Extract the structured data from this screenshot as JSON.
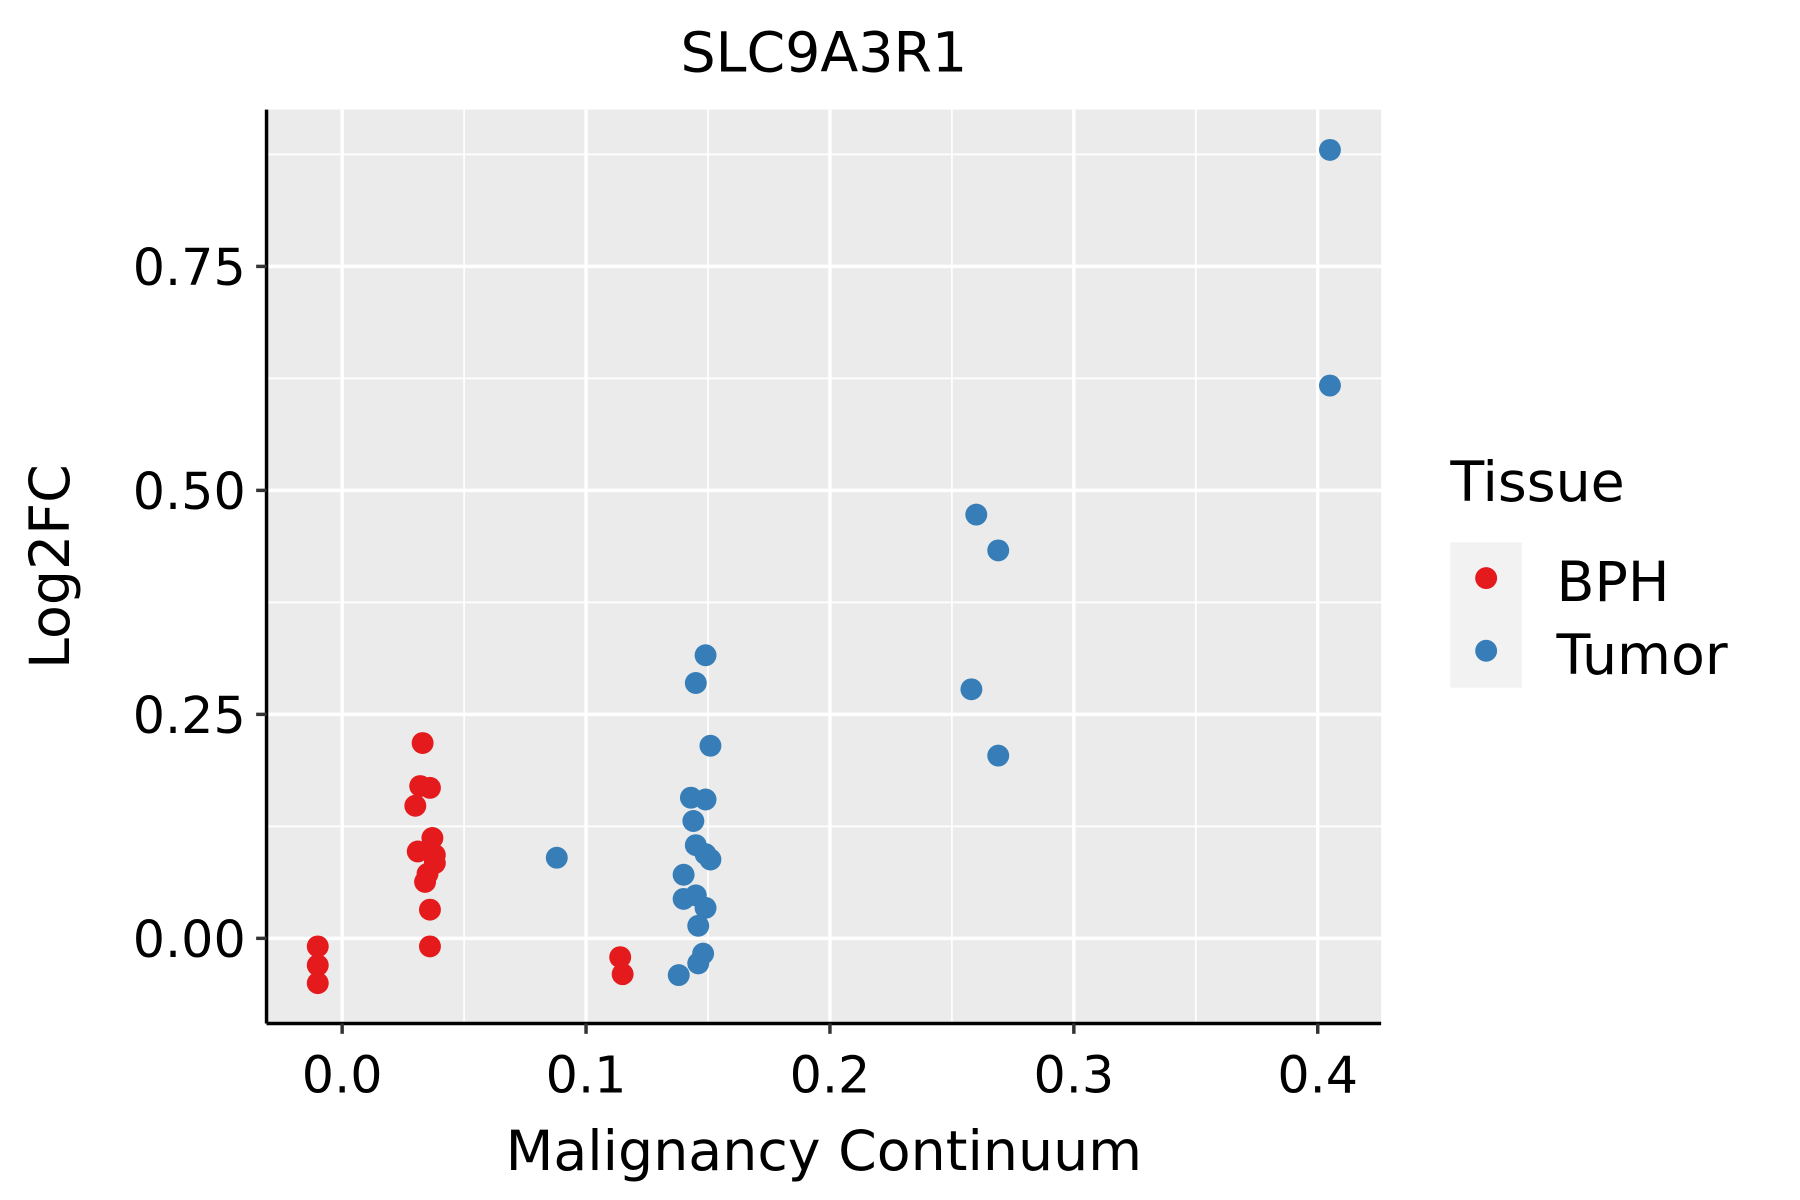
{
  "chart_data": {
    "type": "scatter",
    "title": "SLC9A3R1",
    "xlabel": "Malignancy Continuum",
    "ylabel": "Log2FC",
    "xlim": [
      -0.031,
      0.426
    ],
    "ylim": [
      -0.095,
      0.925
    ],
    "xticks": [
      0.0,
      0.1,
      0.2,
      0.3,
      0.4
    ],
    "xtick_labels": [
      "0.0",
      "0.1",
      "0.2",
      "0.3",
      "0.4"
    ],
    "yticks": [
      0.0,
      0.25,
      0.5,
      0.75
    ],
    "ytick_labels": [
      "0.00",
      "0.25",
      "0.50",
      "0.75"
    ],
    "grid": true,
    "legend": {
      "title": "Tissue",
      "placement": "right"
    },
    "series": [
      {
        "name": "BPH",
        "color": "#E41A1C",
        "points": [
          [
            -0.01,
            -0.009
          ],
          [
            -0.01,
            -0.03
          ],
          [
            -0.01,
            -0.05
          ],
          [
            0.033,
            0.218
          ],
          [
            0.032,
            0.17
          ],
          [
            0.036,
            0.168
          ],
          [
            0.03,
            0.148
          ],
          [
            0.037,
            0.112
          ],
          [
            0.031,
            0.097
          ],
          [
            0.036,
            0.097
          ],
          [
            0.038,
            0.093
          ],
          [
            0.038,
            0.084
          ],
          [
            0.035,
            0.072
          ],
          [
            0.034,
            0.063
          ],
          [
            0.036,
            0.032
          ],
          [
            0.036,
            -0.009
          ],
          [
            0.114,
            -0.021
          ],
          [
            0.115,
            -0.04
          ]
        ]
      },
      {
        "name": "Tumor",
        "color": "#377EB8",
        "points": [
          [
            0.405,
            0.88
          ],
          [
            0.405,
            0.617
          ],
          [
            0.26,
            0.473
          ],
          [
            0.269,
            0.433
          ],
          [
            0.258,
            0.278
          ],
          [
            0.269,
            0.204
          ],
          [
            0.088,
            0.09
          ],
          [
            0.149,
            0.316
          ],
          [
            0.145,
            0.285
          ],
          [
            0.151,
            0.215
          ],
          [
            0.143,
            0.157
          ],
          [
            0.149,
            0.155
          ],
          [
            0.144,
            0.131
          ],
          [
            0.145,
            0.104
          ],
          [
            0.149,
            0.094
          ],
          [
            0.151,
            0.088
          ],
          [
            0.14,
            0.071
          ],
          [
            0.14,
            0.044
          ],
          [
            0.145,
            0.048
          ],
          [
            0.149,
            0.034
          ],
          [
            0.146,
            0.014
          ],
          [
            0.148,
            -0.017
          ],
          [
            0.146,
            -0.028
          ],
          [
            0.138,
            -0.041
          ]
        ]
      }
    ]
  }
}
